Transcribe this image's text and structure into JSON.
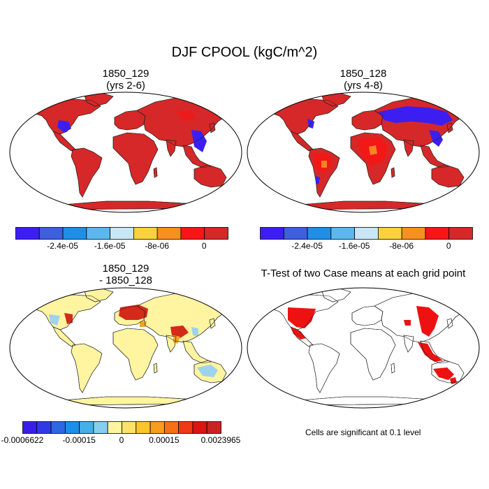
{
  "figure": {
    "title": "DJF CPOOL (kgC/m^2)",
    "panels": [
      {
        "id": "p1",
        "title_line1": "1850_129",
        "title_line2": "(yrs 2-6)",
        "dominant": "red-everywhere"
      },
      {
        "id": "p2",
        "title_line1": "1850_128",
        "title_line2": "(yrs 4-8)",
        "dominant": "red-with-blue-eurasia"
      },
      {
        "id": "p3",
        "title_line1": "1850_129",
        "title_line2": "- 1850_128",
        "dominant": "pale-yellow-difference"
      },
      {
        "id": "p4",
        "title_line1": "T-Test of two Case means at each grid point",
        "title_line2": "",
        "dominant": "significance-mask"
      }
    ],
    "colorbar_cpool": {
      "colors": [
        "#3c1ff0",
        "#3d5fe0",
        "#1e8fe8",
        "#5ab8f0",
        "#c8e6f6",
        "#fbd23e",
        "#f9901e",
        "#f51616",
        "#d62828"
      ],
      "tick_labels": [
        "-2.4e-05",
        "-1.6e-05",
        "-8e-06",
        "0"
      ]
    },
    "colorbar_diff": {
      "colors": [
        "#3a1ee8",
        "#2f3ae6",
        "#2d68e2",
        "#1f8ee6",
        "#46aee8",
        "#86cdf0",
        "#fff4a0",
        "#fde26a",
        "#fbc52e",
        "#f99d1e",
        "#f6701a",
        "#f03a14",
        "#dc1414",
        "#c82424"
      ],
      "tick_labels": [
        "-0.0006622",
        "-0.00015",
        "0",
        "0.00015",
        "0.0023965"
      ]
    },
    "significance_note": "Cells are significant at 0.1 level",
    "palette": {
      "red": "#d62828",
      "bright_red": "#f51616",
      "blue": "#3c1ff0",
      "light_blue": "#9fd2ee",
      "pale_yellow": "#fff4a0",
      "sig_red": "#ee1111"
    }
  }
}
